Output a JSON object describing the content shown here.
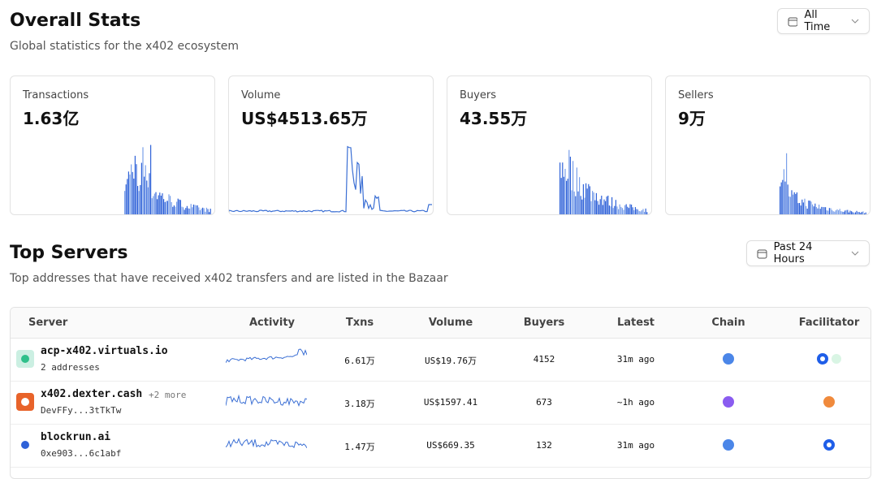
{
  "header": {
    "title": "Overall Stats",
    "subtitle": "Global statistics for the x402 ecosystem",
    "range_button": "All Time"
  },
  "stats": [
    {
      "label": "Transactions",
      "value": "1.63亿"
    },
    {
      "label": "Volume",
      "value": "US$4513.65万"
    },
    {
      "label": "Buyers",
      "value": "43.55万"
    },
    {
      "label": "Sellers",
      "value": "9万"
    }
  ],
  "servers": {
    "title": "Top Servers",
    "subtitle": "Top addresses that have received x402 transfers and are listed in the Bazaar",
    "range_button": "Past 24 Hours",
    "table": {
      "columns": [
        "Server",
        "Activity",
        "Txns",
        "Volume",
        "Buyers",
        "Latest",
        "Chain",
        "Facilitator"
      ],
      "rows": [
        {
          "name": "acp-x402.virtuals.io",
          "sub": "2 addresses",
          "txns": "6.61万",
          "volume": "US$19.76万",
          "buyers": 4152,
          "latest": "31m ago"
        },
        {
          "name": "x402.dexter.cash",
          "extra": "+2 more",
          "sub": "DevFFy...3tTkTw",
          "txns": "3.18万",
          "volume": "US$1597.41",
          "buyers": 673,
          "latest": "~1h ago"
        },
        {
          "name": "blockrun.ai",
          "sub": "0xe903...6c1abf",
          "txns": "1.47万",
          "volume": "US$669.35",
          "buyers": 132,
          "latest": "31m ago"
        }
      ]
    }
  }
}
